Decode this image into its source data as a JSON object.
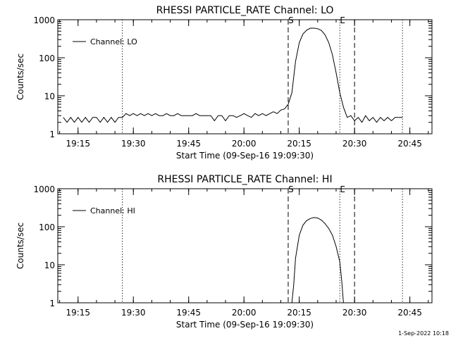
{
  "chart_data": [
    {
      "type": "line",
      "title": "RHESSI PARTICLE_RATE Channel: LO",
      "xlabel": "Start Time (09-Sep-16 19:09:30)",
      "ylabel": "Counts/sec",
      "yscale": "log",
      "ylim": [
        1,
        1000
      ],
      "x_ticks": [
        "19:15",
        "19:30",
        "19:45",
        "20:00",
        "20:15",
        "20:30",
        "20:45"
      ],
      "y_ticks": [
        "1",
        "10",
        "100",
        "1000"
      ],
      "legend": {
        "label": "Channel: LO",
        "position": "top-left"
      },
      "vertical_lines": [
        {
          "time": "19:27",
          "style": "dotted",
          "label": ""
        },
        {
          "time": "20:12",
          "style": "dashed",
          "label": "S"
        },
        {
          "time": "20:26",
          "style": "dotted",
          "label": "E"
        },
        {
          "time": "20:30",
          "style": "dashed",
          "label": ""
        },
        {
          "time": "20:43",
          "style": "dotted",
          "label": ""
        }
      ],
      "series": [
        {
          "name": "Channel: LO",
          "points": [
            [
              "19:11:00",
              2.7
            ],
            [
              "19:12:00",
              2.0
            ],
            [
              "19:13:00",
              2.7
            ],
            [
              "19:14:00",
              2.0
            ],
            [
              "19:15:00",
              2.7
            ],
            [
              "19:16:00",
              2.0
            ],
            [
              "19:17:00",
              2.7
            ],
            [
              "19:18:00",
              2.0
            ],
            [
              "19:19:00",
              2.7
            ],
            [
              "19:20:00",
              2.7
            ],
            [
              "19:21:00",
              2.0
            ],
            [
              "19:22:00",
              2.7
            ],
            [
              "19:23:00",
              2.0
            ],
            [
              "19:24:00",
              2.7
            ],
            [
              "19:25:00",
              2.0
            ],
            [
              "19:26:00",
              2.7
            ],
            [
              "19:27:00",
              2.7
            ],
            [
              "19:28:00",
              3.4
            ],
            [
              "19:29:00",
              3.0
            ],
            [
              "19:30:00",
              3.4
            ],
            [
              "19:31:00",
              3.0
            ],
            [
              "19:32:00",
              3.4
            ],
            [
              "19:33:00",
              3.0
            ],
            [
              "19:34:00",
              3.4
            ],
            [
              "19:35:00",
              3.0
            ],
            [
              "19:36:00",
              3.4
            ],
            [
              "19:37:00",
              3.0
            ],
            [
              "19:38:00",
              3.0
            ],
            [
              "19:39:00",
              3.4
            ],
            [
              "19:40:00",
              3.0
            ],
            [
              "19:41:00",
              3.0
            ],
            [
              "19:42:00",
              3.4
            ],
            [
              "19:43:00",
              3.0
            ],
            [
              "19:44:00",
              3.0
            ],
            [
              "19:45:00",
              3.0
            ],
            [
              "19:46:00",
              3.0
            ],
            [
              "19:47:00",
              3.4
            ],
            [
              "19:48:00",
              3.0
            ],
            [
              "19:49:00",
              3.0
            ],
            [
              "19:50:00",
              3.0
            ],
            [
              "19:51:00",
              3.0
            ],
            [
              "19:52:00",
              2.2
            ],
            [
              "19:53:00",
              3.0
            ],
            [
              "19:54:00",
              3.0
            ],
            [
              "19:55:00",
              2.2
            ],
            [
              "19:56:00",
              3.0
            ],
            [
              "19:57:00",
              3.0
            ],
            [
              "19:58:00",
              2.7
            ],
            [
              "19:59:00",
              3.0
            ],
            [
              "20:00:00",
              3.4
            ],
            [
              "20:01:00",
              3.0
            ],
            [
              "20:02:00",
              2.7
            ],
            [
              "20:03:00",
              3.4
            ],
            [
              "20:04:00",
              3.0
            ],
            [
              "20:05:00",
              3.4
            ],
            [
              "20:06:00",
              3.0
            ],
            [
              "20:07:00",
              3.4
            ],
            [
              "20:08:00",
              3.8
            ],
            [
              "20:09:00",
              3.4
            ],
            [
              "20:10:00",
              4.2
            ],
            [
              "20:11:00",
              4.5
            ],
            [
              "20:12:00",
              6.0
            ],
            [
              "20:13:00",
              12
            ],
            [
              "20:14:00",
              80
            ],
            [
              "20:15:00",
              250
            ],
            [
              "20:16:00",
              420
            ],
            [
              "20:17:00",
              530
            ],
            [
              "20:18:00",
              600
            ],
            [
              "20:19:00",
              600
            ],
            [
              "20:20:00",
              580
            ],
            [
              "20:21:00",
              520
            ],
            [
              "20:22:00",
              400
            ],
            [
              "20:23:00",
              250
            ],
            [
              "20:24:00",
              120
            ],
            [
              "20:25:00",
              40
            ],
            [
              "20:26:00",
              12
            ],
            [
              "20:27:00",
              5.0
            ],
            [
              "20:28:00",
              2.7
            ],
            [
              "20:29:00",
              3.0
            ],
            [
              "20:30:00",
              2.2
            ],
            [
              "20:31:00",
              2.7
            ],
            [
              "20:32:00",
              2.0
            ],
            [
              "20:33:00",
              3.0
            ],
            [
              "20:34:00",
              2.2
            ],
            [
              "20:35:00",
              2.7
            ],
            [
              "20:36:00",
              2.0
            ],
            [
              "20:37:00",
              2.7
            ],
            [
              "20:38:00",
              2.2
            ],
            [
              "20:39:00",
              2.7
            ],
            [
              "20:40:00",
              2.2
            ],
            [
              "20:41:00",
              2.7
            ],
            [
              "20:42:00",
              2.7
            ],
            [
              "20:43:00",
              2.7
            ]
          ]
        }
      ]
    },
    {
      "type": "line",
      "title": "RHESSI PARTICLE_RATE Channel: HI",
      "xlabel": "Start Time (09-Sep-16 19:09:30)",
      "ylabel": "Counts/sec",
      "yscale": "log",
      "ylim": [
        1,
        1000
      ],
      "x_ticks": [
        "19:15",
        "19:30",
        "19:45",
        "20:00",
        "20:15",
        "20:30",
        "20:45"
      ],
      "y_ticks": [
        "1",
        "10",
        "100",
        "1000"
      ],
      "legend": {
        "label": "Channel: HI",
        "position": "top-left"
      },
      "vertical_lines": [
        {
          "time": "19:27",
          "style": "dotted",
          "label": ""
        },
        {
          "time": "20:12",
          "style": "dashed",
          "label": "S"
        },
        {
          "time": "20:26",
          "style": "dotted",
          "label": "E"
        },
        {
          "time": "20:30",
          "style": "dashed",
          "label": ""
        },
        {
          "time": "20:43",
          "style": "dotted",
          "label": ""
        }
      ],
      "series": [
        {
          "name": "Channel: HI",
          "points": [
            [
              "20:13:00",
              1.0
            ],
            [
              "20:13:30",
              3.0
            ],
            [
              "20:14:00",
              15
            ],
            [
              "20:15:00",
              60
            ],
            [
              "20:16:00",
              110
            ],
            [
              "20:17:00",
              145
            ],
            [
              "20:18:00",
              165
            ],
            [
              "20:19:00",
              175
            ],
            [
              "20:20:00",
              170
            ],
            [
              "20:21:00",
              150
            ],
            [
              "20:22:00",
              120
            ],
            [
              "20:23:00",
              90
            ],
            [
              "20:24:00",
              60
            ],
            [
              "20:25:00",
              30
            ],
            [
              "20:26:00",
              12
            ],
            [
              "20:26:30",
              4.0
            ],
            [
              "20:27:00",
              1.0
            ]
          ]
        }
      ]
    }
  ],
  "footer": {
    "timestamp": "1-Sep-2022 10:18"
  }
}
